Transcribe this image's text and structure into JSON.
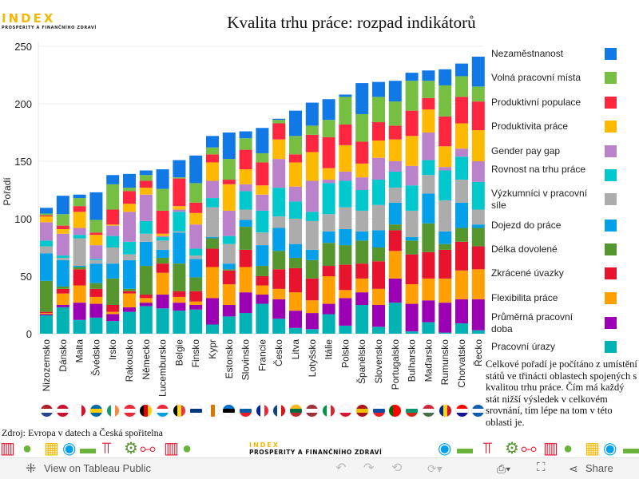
{
  "logo": {
    "title": "INDEX",
    "subtitle": "PROSPERITY A FINANČNÍHO ZDRAVÍ"
  },
  "chart_data": {
    "type": "bar",
    "stacked": true,
    "title": "Kvalita trhu práce: rozpad indikátorů",
    "ylabel": "Pořadí",
    "xlabel": "",
    "ylim": [
      0,
      250
    ],
    "yticks": [
      0,
      50,
      100,
      150,
      200,
      250
    ],
    "grid": true,
    "legend_position": "right",
    "categories": [
      "Nizozemsko",
      "Dánsko",
      "Malta",
      "Švédsko",
      "Irsko",
      "Rakousko",
      "Německo",
      "Lucembursko",
      "Belgie",
      "Finsko",
      "Kypr",
      "Estonsko",
      "Slovinsko",
      "Francie",
      "Česko",
      "Litva",
      "Lotyšsko",
      "Itálie",
      "Polsko",
      "Španělsko",
      "Slovensko",
      "Portugalsko",
      "Bulharsko",
      "Maďarsko",
      "Rumunsko",
      "Chorvatsko",
      "Řecko"
    ],
    "series": [
      {
        "name": "Pracovní úrazy",
        "color": "#00b2b4",
        "values": [
          16,
          23,
          12,
          14,
          11,
          19,
          24,
          22,
          20,
          21,
          8,
          15,
          18,
          26,
          13,
          5,
          4,
          17,
          7,
          25,
          6,
          27,
          2,
          10,
          1,
          9,
          3
        ]
      },
      {
        "name": "Průměrná pracovní doba",
        "color": "#9b00b4",
        "values": [
          1,
          2,
          15,
          12,
          6,
          4,
          3,
          12,
          7,
          4,
          23,
          10,
          18,
          8,
          17,
          15,
          14,
          9,
          24,
          11,
          19,
          21,
          24,
          19,
          26,
          21,
          27
        ]
      },
      {
        "name": "Flexibilita práce",
        "color": "#ff9f00",
        "values": [
          1,
          10,
          15,
          6,
          2,
          12,
          4,
          19,
          5,
          3,
          27,
          18,
          22,
          8,
          9,
          16,
          11,
          24,
          7,
          12,
          14,
          24,
          17,
          19,
          21,
          25,
          26
        ]
      },
      {
        "name": "Zkrácené úvazky",
        "color": "#e8142d",
        "values": [
          1,
          4,
          14,
          7,
          6,
          2,
          3,
          8,
          5,
          9,
          16,
          12,
          15,
          8,
          17,
          21,
          19,
          9,
          22,
          13,
          24,
          18,
          26,
          23,
          25,
          25,
          20
        ]
      },
      {
        "name": "Délka dovolené",
        "color": "#56962e",
        "values": [
          27,
          2,
          2,
          5,
          23,
          2,
          25,
          5,
          24,
          12,
          9,
          1,
          20,
          9,
          16,
          9,
          16,
          20,
          17,
          20,
          12,
          5,
          12,
          25,
          5,
          12,
          16
        ]
      },
      {
        "name": "Dojezd do práce",
        "color": "#05a0ea",
        "values": [
          24,
          23,
          1,
          17,
          13,
          25,
          21,
          7,
          27,
          16,
          1,
          5,
          6,
          18,
          20,
          12,
          9,
          10,
          14,
          8,
          15,
          19,
          3,
          26,
          11,
          22,
          3
        ]
      },
      {
        "name": "Výzkumníci v pracovní síle",
        "color": "#acacac",
        "values": [
          6,
          2,
          24,
          3,
          14,
          5,
          7,
          8,
          1,
          3,
          26,
          17,
          9,
          11,
          10,
          22,
          25,
          15,
          19,
          18,
          22,
          13,
          23,
          16,
          27,
          20,
          13
        ]
      },
      {
        "name": "Rovnost na trhu práce",
        "color": "#00c8cc",
        "values": [
          5,
          2,
          3,
          1,
          10,
          11,
          11,
          3,
          17,
          6,
          8,
          7,
          16,
          19,
          25,
          15,
          8,
          27,
          23,
          18,
          22,
          14,
          22,
          13,
          26,
          20,
          24
        ]
      },
      {
        "name": "Gender pay gap",
        "color": "#bb82cc",
        "values": [
          16,
          19,
          6,
          12,
          9,
          26,
          23,
          1,
          2,
          21,
          15,
          22,
          6,
          14,
          25,
          13,
          27,
          3,
          8,
          11,
          19,
          9,
          17,
          24,
          3,
          7,
          18
        ]
      },
      {
        "name": "Produktivita práce",
        "color": "#ffb900",
        "values": [
          5,
          4,
          14,
          9,
          1,
          7,
          6,
          2,
          3,
          10,
          16,
          23,
          13,
          8,
          17,
          21,
          25,
          10,
          23,
          12,
          15,
          19,
          26,
          20,
          18,
          22,
          27
        ]
      },
      {
        "name": "Produktivní populace",
        "color": "#ff2640",
        "values": [
          1,
          3,
          5,
          2,
          13,
          11,
          6,
          20,
          24,
          9,
          7,
          4,
          17,
          20,
          14,
          7,
          15,
          27,
          18,
          19,
          16,
          12,
          22,
          10,
          26,
          23,
          25
        ]
      },
      {
        "name": "Volná pracovní místa",
        "color": "#76bf43",
        "values": [
          1.5,
          10,
          7,
          11,
          22,
          3,
          5,
          19,
          1,
          17,
          6,
          18,
          10,
          8,
          3,
          16,
          8,
          15,
          24,
          24,
          22,
          21,
          26,
          15,
          27,
          18,
          13
        ]
      },
      {
        "name": "Nezaměstnanost",
        "color": "#1079e6",
        "values": [
          5,
          16,
          3,
          24,
          8,
          12,
          4,
          17,
          15,
          24,
          10,
          23,
          6,
          22,
          1,
          22,
          20,
          18,
          2,
          27,
          13,
          18,
          7,
          9,
          14,
          11,
          26
        ]
      }
    ]
  },
  "legend_order": [
    "Nezaměstnanost",
    "Volná pracovní místa",
    "Produktivní populace",
    "Produktivita práce",
    "Gender pay gap",
    "Rovnost na trhu práce",
    "Výzkumníci v pracovní síle",
    "Dojezd do práce",
    "Délka dovolené",
    "Zkrácené úvazky",
    "Flexibilita práce",
    "Průměrná pracovní doba",
    "Pracovní úrazy"
  ],
  "flags": [
    [
      "#ae1c28",
      "#fff",
      "#21468b"
    ],
    [
      "#c8102e",
      "#fff",
      "#c8102e"
    ],
    [
      "#fff",
      "#fff",
      "#cf142b"
    ],
    [
      "#006aa7",
      "#fecc00",
      "#006aa7"
    ],
    [
      "#169b62",
      "#fff",
      "#ff883e"
    ],
    [
      "#ed2939",
      "#fff",
      "#ed2939"
    ],
    [
      "#000",
      "#dd0000",
      "#ffce00"
    ],
    [
      "#ed2939",
      "#fff",
      "#00a1de"
    ],
    [
      "#000",
      "#fdda24",
      "#ef3340"
    ],
    [
      "#fff",
      "#003580",
      "#fff"
    ],
    [
      "#fff",
      "#d57800",
      "#fff"
    ],
    [
      "#0072ce",
      "#000",
      "#fff"
    ],
    [
      "#fff",
      "#005da4",
      "#ed1c24"
    ],
    [
      "#002395",
      "#fff",
      "#ed2939"
    ],
    [
      "#11457e",
      "#fff",
      "#d7141a"
    ],
    [
      "#fdb913",
      "#006a44",
      "#c1272d"
    ],
    [
      "#9e3039",
      "#fff",
      "#9e3039"
    ],
    [
      "#009246",
      "#fff",
      "#ce2b37"
    ],
    [
      "#fff",
      "#fff",
      "#dc143c"
    ],
    [
      "#aa151b",
      "#f1bf00",
      "#aa151b"
    ],
    [
      "#fff",
      "#0b4ea2",
      "#ee1c25"
    ],
    [
      "#006600",
      "#ff0000",
      "#ff0000"
    ],
    [
      "#fff",
      "#00966e",
      "#d62612"
    ],
    [
      "#ce2939",
      "#fff",
      "#477050"
    ],
    [
      "#002b7f",
      "#fcd116",
      "#ce1126"
    ],
    [
      "#ff0000",
      "#fff",
      "#171796"
    ],
    [
      "#0d5eaf",
      "#fff",
      "#0d5eaf"
    ]
  ],
  "note": "Celkové pořadí je počítáno z umístění států ve třinácti oblastech spojených s kvalitou trhu práce. Čím má každý stát nižší výsledek v celkovém srovnání, tím lépe na tom v této oblasti je.",
  "source": "Zdroj: Evropa v datech a Česká spořitelna",
  "footer_logo": {
    "title": "INDEX",
    "subtitle": "PROSPERITY A FINANČNÍHO ZDRAVÍ"
  },
  "toolbar": {
    "view_label": "View on Tableau Public",
    "share_label": "Share"
  }
}
